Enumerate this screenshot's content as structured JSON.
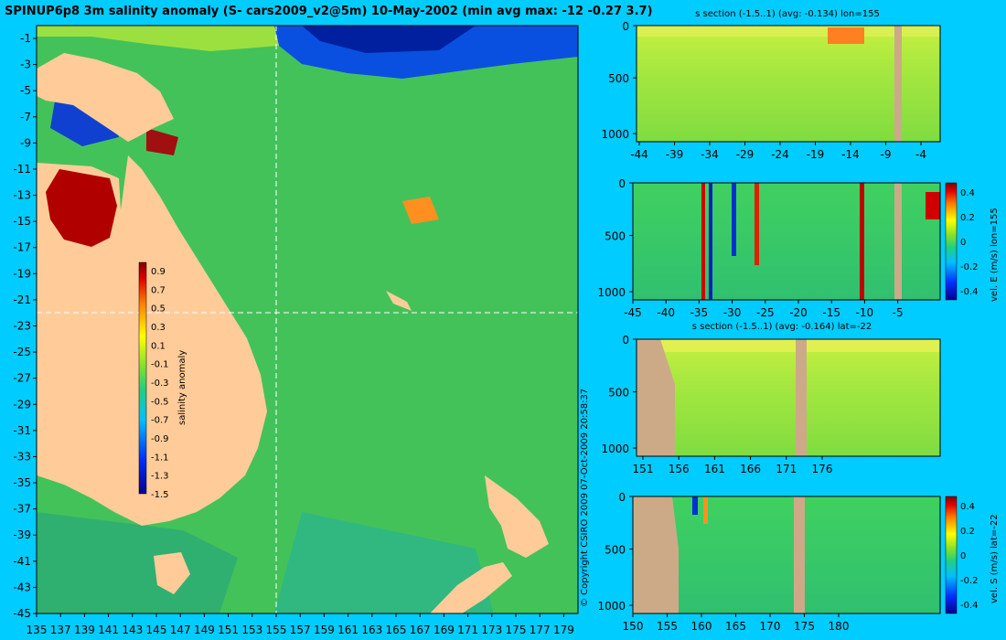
{
  "main_title": "SPINUP6p8 3m salinity anomaly (S- cars2009_v2@5m) 10-May-2002 (min avg max: -12 -0.27 3.7)",
  "copyright": "© Copyright CSIRO 2009   07-Oct-2009 20:58:37",
  "colors": {
    "background": "#00ccff",
    "land": "#ffcc99",
    "section_land": "#ccaa88",
    "ocean_base": "#44c25a"
  },
  "map": {
    "lat_ticks": [
      "-1",
      "-3",
      "-5",
      "-7",
      "-9",
      "-11",
      "-13",
      "-15",
      "-17",
      "-19",
      "-21",
      "-23",
      "-25",
      "-27",
      "-29",
      "-31",
      "-33",
      "-35",
      "-37",
      "-39",
      "-41",
      "-43",
      "-45"
    ],
    "lon_ticks": [
      "135",
      "137",
      "139",
      "141",
      "143",
      "145",
      "147",
      "149",
      "151",
      "153",
      "155",
      "157",
      "159",
      "161",
      "163",
      "165",
      "167",
      "169",
      "171",
      "173",
      "175",
      "177",
      "179"
    ],
    "colorbar": {
      "label": "salinity anomaly",
      "ticks": [
        "0.9",
        "0.7",
        "0.5",
        "0.3",
        "0.1",
        "-0.1",
        "-0.3",
        "-0.5",
        "-0.7",
        "-0.9",
        "-1.1",
        "-1.3",
        "-1.5"
      ]
    }
  },
  "panels": [
    {
      "title": "s section (-1.5..1) (avg: -0.134) lon=155",
      "x_ticks": [
        "-44",
        "-39",
        "-34",
        "-29",
        "-24",
        "-19",
        "-14",
        "-9",
        "-4"
      ],
      "y_ticks": [
        "0",
        "500",
        "1000"
      ]
    },
    {
      "title": "",
      "side_label": "vel. E (m/s) lon=155",
      "x_ticks": [
        "-45",
        "-40",
        "-35",
        "-30",
        "-25",
        "-20",
        "-15",
        "-10",
        "-5"
      ],
      "y_ticks": [
        "0",
        "500",
        "1000"
      ],
      "colorbar_ticks": [
        "0.4",
        "0.2",
        "0",
        "-0.2",
        "-0.4"
      ]
    },
    {
      "title": "s section (-1.5..1) (avg: -0.164) lat=-22",
      "x_ticks": [
        "151",
        "156",
        "161",
        "166",
        "171",
        "176"
      ],
      "y_ticks": [
        "0",
        "500",
        "1000"
      ]
    },
    {
      "title": "",
      "side_label": "vel. S (m/s) lat=-22",
      "x_ticks": [
        "150",
        "155",
        "160",
        "165",
        "170",
        "175",
        "180"
      ],
      "y_ticks": [
        "0",
        "500",
        "1000"
      ],
      "colorbar_ticks": [
        "0.4",
        "0.2",
        "0",
        "-0.2",
        "-0.4"
      ]
    }
  ]
}
